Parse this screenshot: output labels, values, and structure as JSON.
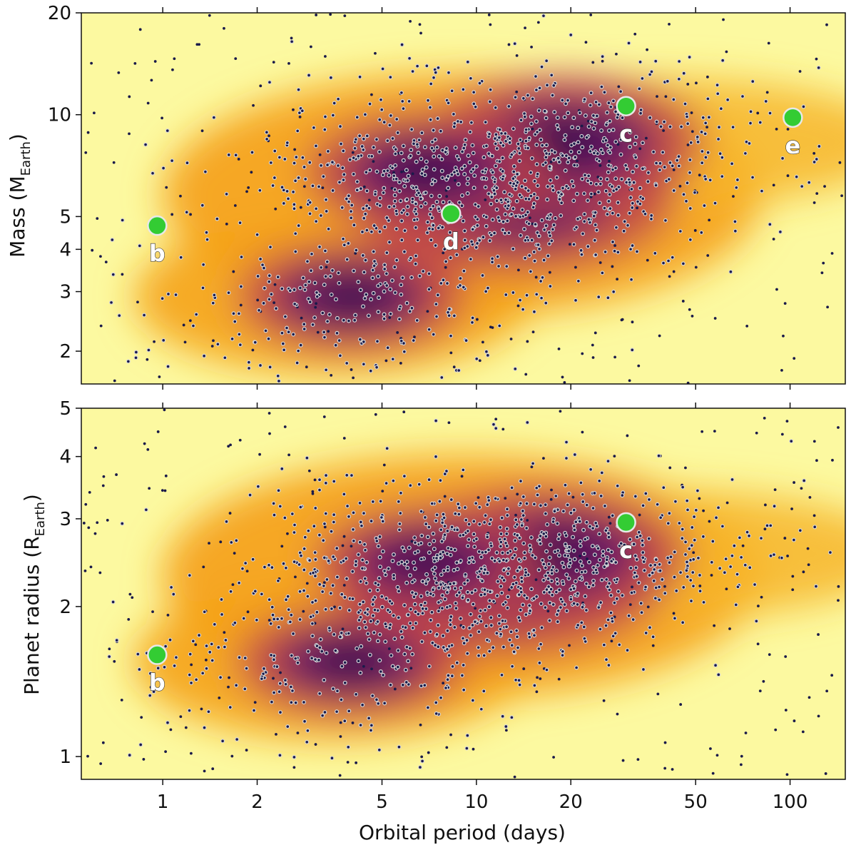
{
  "chart_data": {
    "type": "scatter",
    "xlabel": "Orbital period (days)",
    "x_scale": "log",
    "xlim": [
      0.55,
      150
    ],
    "x_ticks": [
      1,
      2,
      5,
      10,
      20,
      50,
      100
    ],
    "x_tick_labels": [
      "1",
      "2",
      "5",
      "10",
      "20",
      "50",
      "100"
    ],
    "colors": {
      "planet": "#33cc33",
      "planet_edge": "#e8e8e8",
      "background_low": "#fcf9a0",
      "background_mid": "#f5a21a",
      "background_high": "#2a0845",
      "point": "#1a1a4a"
    },
    "panels": [
      {
        "id": "mass",
        "ylabel_main": "Mass (M",
        "ylabel_sub": "Earth",
        "ylabel_close": ")",
        "y_scale": "log",
        "ylim": [
          1.6,
          20
        ],
        "y_ticks": [
          2,
          3,
          4,
          5,
          10,
          20
        ],
        "y_tick_labels": [
          "2",
          "3",
          "4",
          "5",
          "10",
          "20"
        ],
        "density_peaks": [
          {
            "period": 13,
            "value": 5.8,
            "strength": 1.0
          },
          {
            "period": 19,
            "value": 8.3,
            "strength": 0.85
          },
          {
            "period": 4,
            "value": 2.9,
            "strength": 0.7
          },
          {
            "period": 7,
            "value": 6.8,
            "strength": 0.75
          }
        ],
        "planets": [
          {
            "label": "b",
            "period": 0.96,
            "value": 4.7
          },
          {
            "label": "d",
            "period": 8.3,
            "value": 5.1
          },
          {
            "label": "c",
            "period": 30.0,
            "value": 10.6
          },
          {
            "label": "e",
            "period": 102,
            "value": 9.8
          }
        ]
      },
      {
        "id": "radius",
        "ylabel_main": "Planet radius (R",
        "ylabel_sub": "Earth",
        "ylabel_close": ")",
        "y_scale": "log",
        "ylim": [
          0.9,
          5
        ],
        "y_ticks": [
          1,
          2,
          3,
          4,
          5
        ],
        "y_tick_labels": [
          "1",
          "2",
          "3",
          "4",
          "5"
        ],
        "density_peaks": [
          {
            "period": 12,
            "value": 2.3,
            "strength": 1.0
          },
          {
            "period": 17,
            "value": 2.55,
            "strength": 0.85
          },
          {
            "period": 4,
            "value": 1.55,
            "strength": 0.7
          },
          {
            "period": 7,
            "value": 2.45,
            "strength": 0.7
          }
        ],
        "planets": [
          {
            "label": "b",
            "period": 0.96,
            "value": 1.6
          },
          {
            "label": "c",
            "period": 30.0,
            "value": 2.95
          }
        ]
      }
    ]
  }
}
